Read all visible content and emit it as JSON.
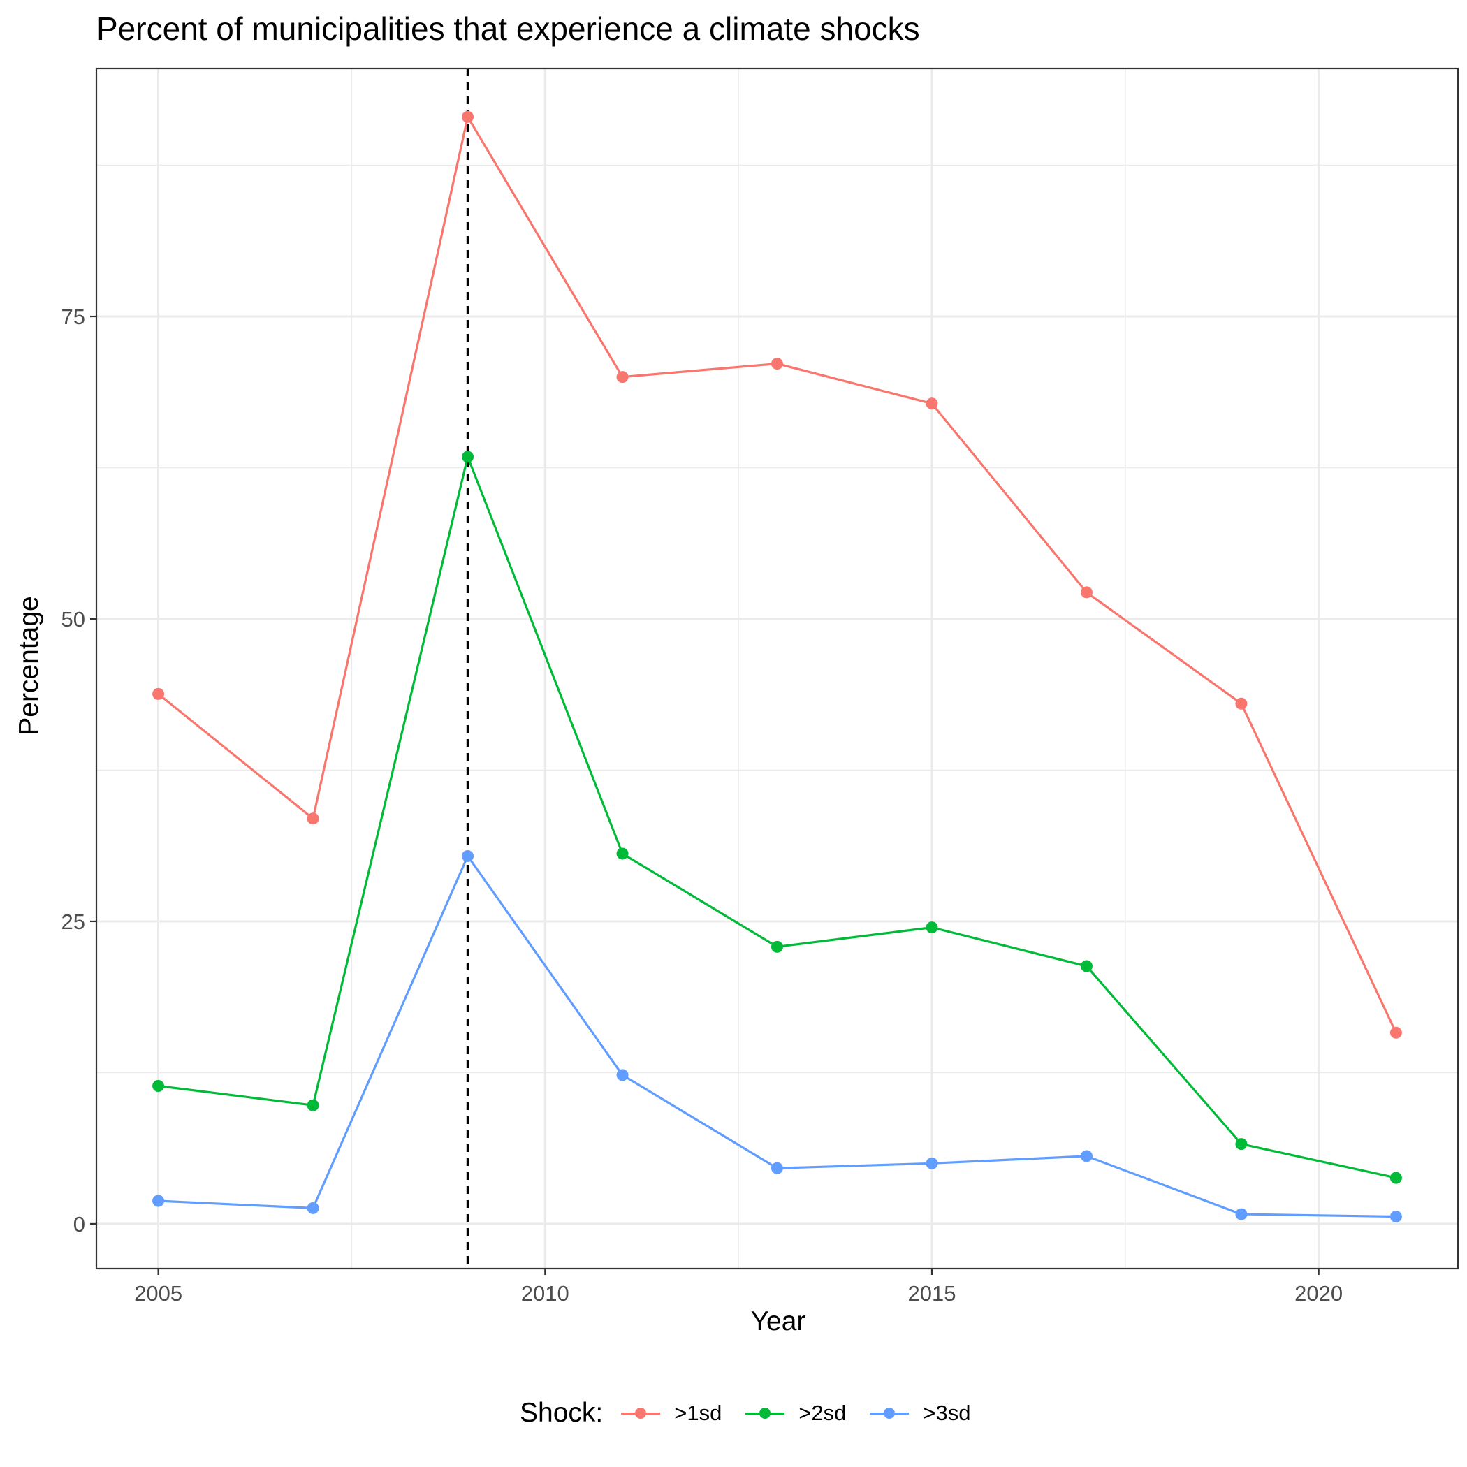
{
  "chart_data": {
    "type": "line",
    "title": "Percent of municipalities that experience a climate shocks",
    "xlabel": "Year",
    "ylabel": "Percentage",
    "xlim": [
      2004.2,
      2021.8
    ],
    "ylim": [
      -3.7,
      95.5
    ],
    "x_ticks": [
      2005,
      2010,
      2015,
      2020
    ],
    "y_ticks": [
      0,
      25,
      50,
      75
    ],
    "x": [
      2005,
      2007,
      2009,
      2011,
      2013,
      2015,
      2017,
      2019,
      2021
    ],
    "series": [
      {
        "name": ">1sd",
        "color": "#F8766D",
        "values": [
          43.8,
          33.5,
          91.5,
          70.0,
          71.1,
          67.8,
          52.2,
          43.0,
          15.8
        ]
      },
      {
        "name": ">2sd",
        "color": "#00BA38",
        "values": [
          11.4,
          9.8,
          63.4,
          30.6,
          22.9,
          24.5,
          21.3,
          6.6,
          3.8
        ]
      },
      {
        "name": ">3sd",
        "color": "#619CFF",
        "values": [
          1.9,
          1.3,
          30.4,
          12.3,
          4.6,
          5.0,
          5.6,
          0.8,
          0.6
        ]
      }
    ],
    "reference_line": {
      "axis": "x",
      "value": 2009,
      "style": "dashed",
      "color": "#000000"
    },
    "grid": true,
    "legend": {
      "title": "Shock:",
      "position": "bottom"
    }
  }
}
